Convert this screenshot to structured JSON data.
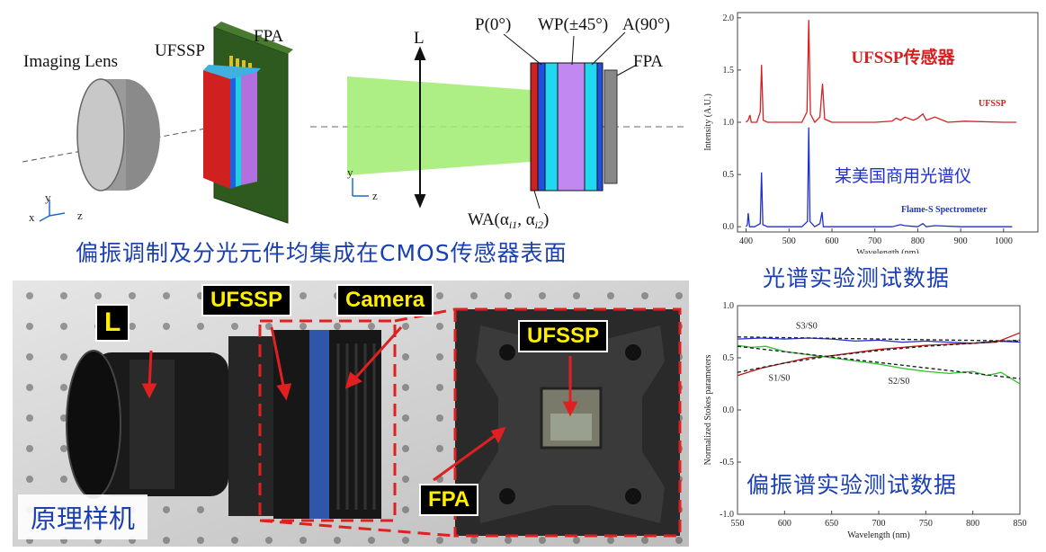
{
  "lens_diagram": {
    "imaging_lens": "Imaging Lens",
    "ufssp": "UFSSP",
    "fpa": "FPA",
    "axes": {
      "x": "x",
      "y": "y",
      "z": "z"
    }
  },
  "optics_diagram": {
    "lens": "L",
    "p": "P(0°)",
    "wp": "WP(±45°)",
    "a": "A(90°)",
    "fpa": "FPA",
    "wa": "WA(α",
    "wa_sub1": "i1",
    "wa_mid": ", α",
    "wa_sub2": "i2",
    "wa_end": ")",
    "axes": {
      "y": "y",
      "z": "z"
    }
  },
  "banner": "偏振调制及分光元件均集成在CMOS传感器表面",
  "photo": {
    "tag_l": "L",
    "tag_ufssp": "UFSSP",
    "tag_camera": "Camera",
    "tag_ufssp_right": "UFSSP",
    "tag_fpa": "FPA",
    "caption": "原理样机"
  },
  "spectrum_caption": "光谱实验测试数据",
  "stokes_caption": "偏振谱实验测试数据",
  "colors": {
    "red": "#d62020",
    "blue": "#2030d0",
    "caption_blue": "#1a3fb0",
    "tag_yellow": "#ffee00"
  },
  "chart_data": [
    {
      "type": "line",
      "xlabel": "Wavelength (nm)",
      "ylabel": "Intensity (A.U.)",
      "xlim": [
        380,
        1080
      ],
      "ylim": [
        -0.05,
        2.05
      ],
      "xticks": [
        400,
        500,
        600,
        700,
        800,
        900,
        1000
      ],
      "yticks": [
        "0.0",
        "0.5",
        "1.0",
        "1.5",
        "2.0"
      ],
      "annotations": [
        "UFSSP传感器",
        "UFSSP",
        "某美国商用光谱仪",
        "Flame-S Spectrometer"
      ],
      "series": [
        {
          "name": "UFSSP",
          "color": "#d62020",
          "x": [
            400,
            405,
            409,
            412,
            425,
            433,
            436,
            440,
            450,
            500,
            530,
            542,
            546,
            550,
            560,
            572,
            578,
            583,
            600,
            700,
            740,
            750,
            760,
            770,
            790,
            800,
            812,
            820,
            840,
            870,
            910,
            1000,
            1030
          ],
          "y": [
            1.0,
            1.02,
            1.07,
            1.0,
            1.0,
            1.1,
            1.55,
            1.02,
            1.0,
            1.0,
            1.0,
            1.1,
            1.98,
            1.08,
            1.0,
            1.05,
            1.37,
            1.03,
            1.0,
            1.0,
            1.01,
            1.04,
            1.02,
            1.05,
            1.02,
            1.04,
            1.08,
            1.02,
            1.05,
            1.0,
            1.01,
            1.0,
            1.0
          ]
        },
        {
          "name": "Flame-S Spectrometer",
          "color": "#2030d0",
          "x": [
            400,
            403,
            405,
            408,
            420,
            433,
            436,
            439,
            450,
            530,
            543,
            546,
            549,
            560,
            572,
            577,
            580,
            600,
            700,
            740,
            760,
            770,
            800,
            812,
            820,
            840,
            900,
            1000,
            1020
          ],
          "y": [
            0.0,
            0.02,
            0.13,
            0.0,
            0.0,
            0.03,
            0.52,
            0.02,
            0.0,
            0.0,
            0.05,
            0.95,
            0.05,
            0.0,
            0.03,
            0.14,
            0.0,
            0.0,
            0.0,
            0.0,
            0.02,
            0.01,
            0.0,
            0.03,
            0.0,
            0.01,
            0.0,
            0.0,
            0.0
          ]
        }
      ]
    },
    {
      "type": "line",
      "xlabel": "Wavelength (nm)",
      "ylabel": "Normalized Stokes parameters",
      "xlim": [
        550,
        850
      ],
      "ylim": [
        -1.0,
        1.0
      ],
      "xticks": [
        550,
        600,
        650,
        700,
        750,
        800,
        850
      ],
      "yticks": [
        "-1.0",
        "-0.5",
        "0.0",
        "0.5",
        "1.0"
      ],
      "annotations": [
        "S3/S0",
        "S1/S0",
        "S2/S0"
      ],
      "series": [
        {
          "name": "S3/S0",
          "color": "#2030d0",
          "x": [
            550,
            575,
            600,
            625,
            650,
            675,
            700,
            725,
            750,
            775,
            800,
            825,
            850
          ],
          "y": [
            0.68,
            0.69,
            0.68,
            0.69,
            0.68,
            0.66,
            0.67,
            0.65,
            0.66,
            0.65,
            0.64,
            0.66,
            0.65
          ]
        },
        {
          "name": "S3/S0 fit",
          "color": "#222222",
          "x": [
            550,
            850
          ],
          "y": [
            0.7,
            0.66
          ]
        },
        {
          "name": "S1/S0",
          "color": "#c01818",
          "x": [
            550,
            575,
            600,
            625,
            650,
            675,
            700,
            725,
            750,
            775,
            800,
            825,
            850
          ],
          "y": [
            0.33,
            0.4,
            0.45,
            0.5,
            0.52,
            0.55,
            0.58,
            0.6,
            0.62,
            0.63,
            0.64,
            0.65,
            0.74
          ]
        },
        {
          "name": "S1/S0 fit",
          "color": "#222222",
          "x": [
            550,
            600,
            650,
            700,
            750,
            800,
            850
          ],
          "y": [
            0.36,
            0.45,
            0.52,
            0.57,
            0.61,
            0.64,
            0.67
          ]
        },
        {
          "name": "S2/S0",
          "color": "#30c030",
          "x": [
            550,
            565,
            580,
            600,
            625,
            650,
            675,
            700,
            725,
            750,
            775,
            800,
            815,
            830,
            850
          ],
          "y": [
            0.62,
            0.6,
            0.61,
            0.56,
            0.53,
            0.5,
            0.47,
            0.44,
            0.4,
            0.37,
            0.35,
            0.37,
            0.33,
            0.36,
            0.25
          ]
        },
        {
          "name": "S2/S0 fit",
          "color": "#222222",
          "x": [
            550,
            850
          ],
          "y": [
            0.61,
            0.3
          ]
        }
      ]
    }
  ]
}
